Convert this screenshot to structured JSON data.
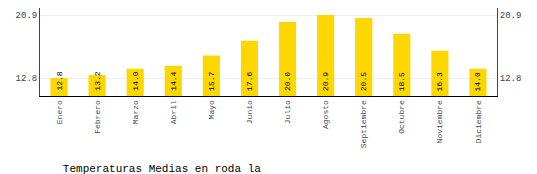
{
  "chart_data": {
    "type": "bar",
    "title": "Temperaturas Medias en roda la",
    "categories": [
      "Enero",
      "Febrero",
      "Marzo",
      "Abril",
      "Mayo",
      "Junio",
      "Julio",
      "Agosto",
      "Septiembre",
      "Octubre",
      "Noviembre",
      "Diciembre"
    ],
    "values": [
      12.8,
      13.2,
      14.0,
      14.4,
      15.7,
      17.6,
      20.0,
      20.9,
      20.5,
      18.5,
      16.3,
      14.0
    ],
    "value_labels": [
      "12.8",
      "13.2",
      "14.0",
      "14.4",
      "15.7",
      "17.6",
      "20.0",
      "20.9",
      "20.5",
      "18.5",
      "16.3",
      "14.0"
    ],
    "color": "#FFD700",
    "ylim": [
      10.5,
      21.8
    ],
    "yticks": [
      12.8,
      20.9
    ],
    "grid": true,
    "data_labels": true
  }
}
